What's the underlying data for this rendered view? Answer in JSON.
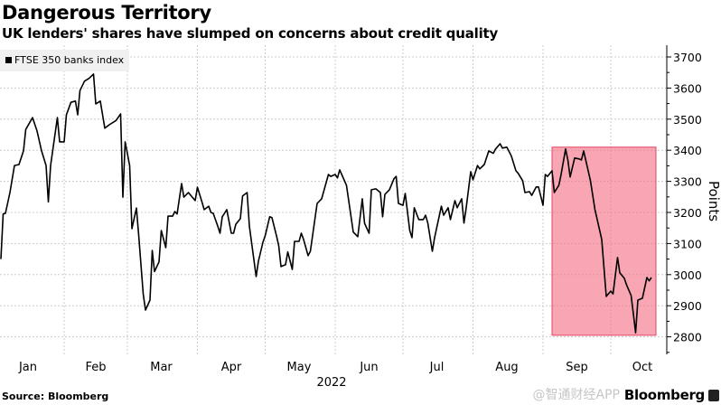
{
  "header": {
    "title": "Dangerous Territory",
    "subtitle": "UK lenders' shares have slumped on concerns about credit quality"
  },
  "footer": {
    "source": "Source: Bloomberg",
    "brand": "Bloomberg",
    "watermark": "@智通财经APP"
  },
  "colors": {
    "line": "#000000",
    "highlight": "#f46b82",
    "grid": "#cccccc"
  },
  "chart_data": {
    "type": "line",
    "title": "Dangerous Territory",
    "subtitle": "UK lenders' shares have slumped on concerns about credit quality",
    "xlabel": "2022",
    "ylabel": "Points",
    "x_units": "day of year 2022",
    "ylim": [
      2750,
      3720
    ],
    "xlim": [
      4,
      300
    ],
    "grid": true,
    "legend": {
      "position": "top-left",
      "entries": [
        "FTSE 350 banks index"
      ]
    },
    "y_ticks": [
      2800,
      2900,
      3000,
      3100,
      3200,
      3300,
      3400,
      3500,
      3600,
      3700
    ],
    "x_ticks": [
      {
        "label": "Jan",
        "day": 16
      },
      {
        "label": "Feb",
        "day": 46
      },
      {
        "label": "Mar",
        "day": 75
      },
      {
        "label": "Apr",
        "day": 106
      },
      {
        "label": "May",
        "day": 136
      },
      {
        "label": "Jun",
        "day": 167
      },
      {
        "label": "Jul",
        "day": 197
      },
      {
        "label": "Aug",
        "day": 228
      },
      {
        "label": "Sep",
        "day": 259
      },
      {
        "label": "Oct",
        "day": 288
      }
    ],
    "month_starts": [
      32,
      60,
      91,
      121,
      152,
      182,
      213,
      244,
      274
    ],
    "highlight": {
      "x_start": 248,
      "x_end": 294,
      "y_low": 2805,
      "y_high": 3410
    },
    "series": [
      {
        "name": "FTSE 350 banks index",
        "x": [
          4,
          5,
          6,
          8,
          10,
          12,
          14,
          15,
          18,
          20,
          22,
          24,
          25,
          26,
          29,
          30,
          32,
          33,
          35,
          37,
          38,
          39,
          41,
          43,
          45,
          46,
          48,
          50,
          52,
          55,
          57,
          58,
          59,
          61,
          62,
          64,
          65,
          67,
          68,
          70,
          71,
          72,
          74,
          75,
          77,
          78,
          80,
          81,
          82,
          84,
          85,
          87,
          90,
          91,
          93,
          94,
          96,
          97,
          98,
          100,
          101,
          102,
          104,
          106,
          107,
          108,
          110,
          111,
          113,
          114,
          117,
          118,
          120,
          121,
          123,
          124,
          126,
          127,
          128,
          130,
          131,
          133,
          134,
          136,
          137,
          138,
          140,
          141,
          144,
          146,
          149,
          150,
          152,
          153,
          154,
          157,
          160,
          162,
          164,
          165,
          167,
          168,
          170,
          172,
          173,
          174,
          176,
          178,
          179,
          180,
          182,
          183,
          185,
          186,
          187,
          189,
          191,
          192,
          193,
          195,
          196,
          199,
          200,
          202,
          203,
          205,
          206,
          208,
          209,
          210,
          212,
          213,
          215,
          216,
          218,
          220,
          222,
          223,
          225,
          226,
          228,
          230,
          232,
          233,
          235,
          236,
          238,
          239,
          241,
          242,
          244,
          245,
          246,
          248,
          249,
          251,
          252,
          254,
          255,
          256,
          258,
          260,
          261,
          262,
          265,
          267,
          270,
          272,
          274,
          275,
          277,
          278,
          280,
          281,
          283,
          284,
          285,
          286,
          288,
          290,
          291,
          292
        ],
        "values": [
          3050,
          3195,
          3197,
          3264,
          3351,
          3354,
          3398,
          3467,
          3505,
          3462,
          3398,
          3351,
          3234,
          3351,
          3505,
          3427,
          3427,
          3514,
          3554,
          3558,
          3514,
          3592,
          3622,
          3631,
          3645,
          3549,
          3558,
          3471,
          3482,
          3496,
          3517,
          3249,
          3427,
          3351,
          3148,
          3214,
          3127,
          2938,
          2886,
          2918,
          3078,
          3010,
          3041,
          3142,
          3087,
          3188,
          3188,
          3203,
          3195,
          3293,
          3249,
          3264,
          3238,
          3281,
          3234,
          3209,
          3220,
          3200,
          3197,
          3156,
          3133,
          3186,
          3209,
          3133,
          3133,
          3162,
          3180,
          3253,
          3264,
          3156,
          2994,
          3043,
          3104,
          3125,
          3186,
          3183,
          3125,
          3093,
          3026,
          3032,
          3073,
          3017,
          3107,
          3107,
          3133,
          3113,
          3061,
          3075,
          3229,
          3244,
          3322,
          3316,
          3322,
          3311,
          3337,
          3287,
          3137,
          3122,
          3244,
          3165,
          3133,
          3273,
          3276,
          3264,
          3186,
          3258,
          3273,
          3308,
          3316,
          3229,
          3223,
          3261,
          3142,
          3119,
          3215,
          3177,
          3177,
          3191,
          3166,
          3075,
          3119,
          3220,
          3191,
          3215,
          3177,
          3238,
          3215,
          3244,
          3166,
          3215,
          3331,
          3305,
          3351,
          3340,
          3354,
          3398,
          3390,
          3404,
          3421,
          3407,
          3410,
          3381,
          3334,
          3326,
          3302,
          3264,
          3267,
          3255,
          3282,
          3282,
          3223,
          3322,
          3316,
          3334,
          3264,
          3287,
          3322,
          3404,
          3369,
          3314,
          3375,
          3372,
          3369,
          3398,
          3302,
          3209,
          3113,
          2930,
          2947,
          2938,
          3055,
          3006,
          2988,
          2967,
          2933,
          2874,
          2813,
          2918,
          2924,
          2991,
          2980,
          2991
        ]
      }
    ]
  }
}
